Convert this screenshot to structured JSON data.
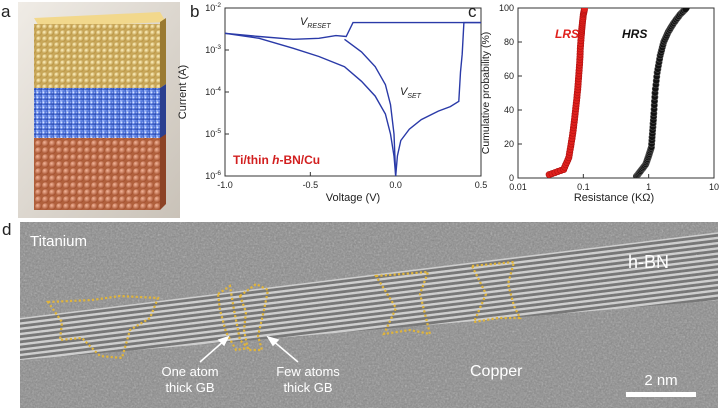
{
  "panel_labels": {
    "a": "a",
    "b": "b",
    "c": "c",
    "d": "d"
  },
  "panel_a": {
    "layers": [
      "top metal (gold-colored atoms)",
      "h-BN (blue)",
      "bottom metal (copper-colored atoms)"
    ],
    "colors": {
      "top": "#d9b866",
      "middle": "#4a6fd8",
      "bottom": "#c9775a"
    }
  },
  "chart_data": [
    {
      "type": "line",
      "panel": "b",
      "xlabel": "Voltage (V)",
      "ylabel": "Current (A)",
      "xlim": [
        -1.0,
        0.5
      ],
      "ylim_log10": [
        -6,
        -2
      ],
      "yscale": "log",
      "x_ticks": [
        "-1.0",
        "-0.5",
        "0.0",
        "0.5"
      ],
      "y_ticks": [
        "10-6",
        "10-5",
        "10-4",
        "10-3",
        "10-2"
      ],
      "annotations": [
        {
          "text": "V",
          "sub": "RESET"
        },
        {
          "text": "V",
          "sub": "SET"
        }
      ],
      "device_label": {
        "pre": "Ti/thin ",
        "italic": "h",
        "post": "-BN/Cu"
      },
      "series_color": "#2a3aa8",
      "series": [
        {
          "x": [
            -1.0,
            -0.8,
            -0.6,
            -0.45,
            -0.35,
            -0.29,
            -0.25,
            -0.2,
            -0.12,
            -0.06,
            -0.02,
            0.0,
            0.02,
            0.06,
            0.15,
            0.25,
            0.3,
            0.4,
            0.5
          ],
          "y": [
            0.0025,
            0.0021,
            0.0018,
            0.0019,
            0.0022,
            0.0021,
            0.0045,
            0.0045,
            0.0045,
            0.0045,
            0.0045,
            0.0045,
            0.0045,
            0.0045,
            0.0045,
            0.0045,
            0.0045,
            0.0045,
            0.0045
          ]
        },
        {
          "x": [
            -1.0,
            -0.8,
            -0.6,
            -0.45,
            -0.3,
            -0.2,
            -0.12,
            -0.06,
            -0.03,
            -0.01,
            0.0,
            0.01,
            0.03,
            0.08,
            0.15,
            0.25,
            0.32,
            0.37,
            0.38,
            0.39,
            0.4,
            0.5
          ],
          "y": [
            0.0025,
            0.0019,
            0.0011,
            0.0007,
            0.0004,
            0.00018,
            8e-05,
            3e-05,
            1e-05,
            3e-06,
            1e-06,
            3e-06,
            7e-06,
            1.3e-05,
            2.2e-05,
            3.5e-05,
            4.5e-05,
            6e-05,
            0.0003,
            0.0008,
            0.0045,
            0.0045
          ]
        },
        {
          "x": [
            -0.3,
            -0.2,
            -0.12,
            -0.06,
            -0.03,
            -0.01,
            0.0
          ],
          "y": [
            0.0018,
            0.0009,
            0.0004,
            0.00015,
            5e-05,
            1e-05,
            1e-06
          ]
        }
      ]
    },
    {
      "type": "scatter",
      "panel": "c",
      "xlabel": "Resistance (KΩ)",
      "ylabel": "Cumulative probability (%)",
      "xscale": "log",
      "xlim": [
        0.01,
        10
      ],
      "ylim": [
        0,
        100
      ],
      "x_ticks": [
        "0.01",
        "0.1",
        "1",
        "10"
      ],
      "y_ticks": [
        "0",
        "20",
        "40",
        "60",
        "80",
        "100"
      ],
      "series": [
        {
          "name": "LRS",
          "color": "#e0201c",
          "x": [
            0.03,
            0.05,
            0.06,
            0.065,
            0.07,
            0.074,
            0.078,
            0.082,
            0.085,
            0.088,
            0.09,
            0.093,
            0.096,
            0.1,
            0.105
          ],
          "y": [
            2,
            5,
            12,
            20,
            28,
            36,
            44,
            52,
            60,
            68,
            76,
            84,
            90,
            96,
            100
          ]
        },
        {
          "name": "HRS",
          "color": "#111111",
          "x": [
            0.65,
            0.75,
            0.9,
            1.0,
            1.1,
            1.15,
            1.2,
            1.25,
            1.35,
            1.5,
            1.7,
            2.0,
            2.4,
            3.0,
            3.8
          ],
          "y": [
            1,
            4,
            8,
            13,
            18,
            28,
            38,
            50,
            62,
            72,
            80,
            86,
            91,
            96,
            100
          ]
        }
      ]
    }
  ],
  "panel_d": {
    "labels": {
      "titanium": "Titanium",
      "hbn": "h-BN",
      "copper": "Copper",
      "gb_one_line1": "One atom",
      "gb_one_line2": "thick GB",
      "gb_few_line1": "Few atoms",
      "gb_few_line2": "thick GB",
      "scale": "2 nm"
    },
    "outline_color": "#e0b43a"
  }
}
